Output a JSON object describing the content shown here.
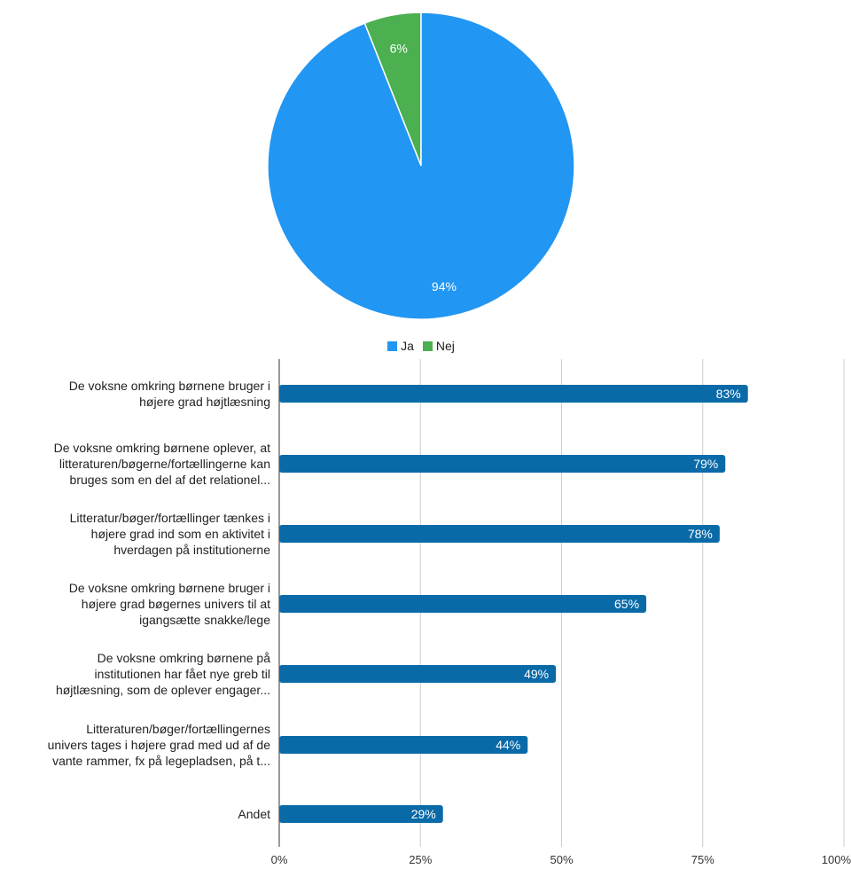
{
  "chart_data": [
    {
      "type": "pie",
      "slices": [
        {
          "label": "Ja",
          "value": 94,
          "display": "94%",
          "color": "#2196f3"
        },
        {
          "label": "Nej",
          "value": 6,
          "display": "6%",
          "color": "#4caf50"
        }
      ],
      "legend": {
        "position": "bottom",
        "entries": [
          "Ja",
          "Nej"
        ]
      }
    },
    {
      "type": "bar",
      "orientation": "horizontal",
      "bar_color": "#0a6aa8",
      "categories": [
        [
          "De voksne omkring børnene bruger i",
          "højere grad højtlæsning"
        ],
        [
          "De voksne omkring børnene oplever, at",
          "litteraturen/bøgerne/fortællingerne kan",
          "bruges som en del af det relationel..."
        ],
        [
          "Litteratur/bøger/fortællinger tænkes i",
          "højere grad ind som en aktivitet i",
          "hverdagen på institutionerne"
        ],
        [
          "De voksne omkring børnene bruger i",
          "højere grad bøgernes univers til at",
          "igangsætte snakke/lege"
        ],
        [
          "De voksne omkring børnene på",
          "institutionen har fået nye greb til",
          "højtlæsning, som de oplever engager..."
        ],
        [
          "Litteraturen/bøger/fortællingernes",
          "univers tages i højere grad med ud af de",
          "vante rammer, fx på legepladsen, på t..."
        ],
        [
          "Andet"
        ]
      ],
      "values": [
        83,
        79,
        78,
        65,
        49,
        44,
        29
      ],
      "data_labels": [
        "83%",
        "79%",
        "78%",
        "65%",
        "49%",
        "44%",
        "29%"
      ],
      "xlim": [
        0,
        100
      ],
      "x_ticks": [
        "0%",
        "25%",
        "50%",
        "75%",
        "100%"
      ],
      "grid": true
    }
  ]
}
